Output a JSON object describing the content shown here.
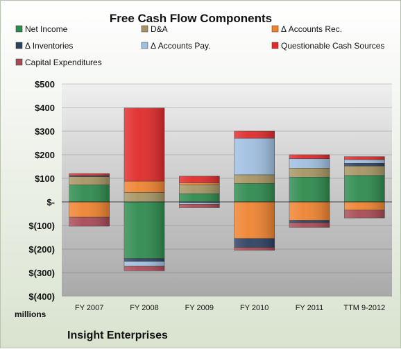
{
  "chart_data": {
    "type": "bar",
    "stacked": true,
    "title": "Free Cash Flow Components",
    "unit_label": "millions",
    "footer": "Insight Enterprises",
    "categories": [
      "FY 2007",
      "FY 2008",
      "FY 2009",
      "FY 2010",
      "FY 2011",
      "TTM 9-2012"
    ],
    "ylim": [
      -400,
      500
    ],
    "yticks": [
      500,
      400,
      300,
      200,
      100,
      0,
      -100,
      -200,
      -300,
      -400
    ],
    "ytick_labels": [
      "$500",
      "$400",
      "$300",
      "$200",
      "$100",
      "$-",
      "$(100)",
      "$(200)",
      "$(300)",
      "$(400)"
    ],
    "grid": true,
    "legend_position": "top",
    "series": [
      {
        "name": "Net Income",
        "color": "#2e8b4e",
        "values": [
          72,
          -240,
          35,
          78,
          105,
          112
        ]
      },
      {
        "name": "D&A",
        "color": "#a69563",
        "values": [
          35,
          40,
          38,
          37,
          38,
          40
        ]
      },
      {
        "name": "Δ Accounts Rec.",
        "color": "#ee8330",
        "values": [
          -65,
          48,
          8,
          -155,
          -78,
          -35
        ]
      },
      {
        "name": "Δ Inventories",
        "color": "#2c4060",
        "values": [
          3,
          -12,
          -3,
          -38,
          -10,
          12
        ]
      },
      {
        "name": "Δ Accounts Pay.",
        "color": "#9fbfe0",
        "values": [
          2,
          -20,
          -7,
          155,
          40,
          15
        ]
      },
      {
        "name": "Questionable Cash Sources",
        "color": "#e02a2a",
        "values": [
          8,
          310,
          28,
          30,
          17,
          13
        ]
      },
      {
        "name": "Capital Expenditures",
        "color": "#a84a55",
        "values": [
          -38,
          -20,
          -15,
          -12,
          -20,
          -33
        ]
      }
    ]
  }
}
